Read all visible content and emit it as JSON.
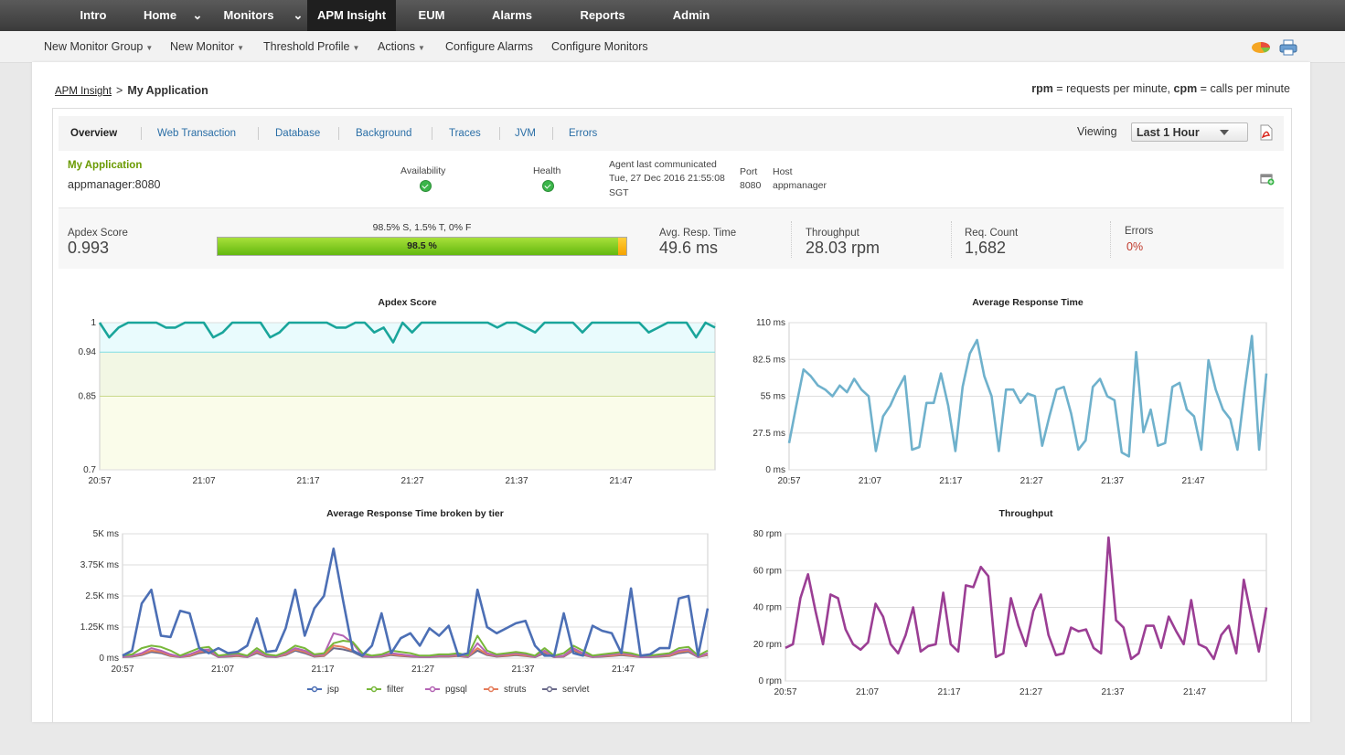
{
  "topnav": {
    "items": [
      {
        "label": "Intro"
      },
      {
        "label": "Home"
      },
      {
        "label": "Monitors"
      },
      {
        "label": "APM Insight",
        "active": true
      },
      {
        "label": "EUM"
      },
      {
        "label": "Alarms"
      },
      {
        "label": "Reports"
      },
      {
        "label": "Admin"
      }
    ]
  },
  "subnav": {
    "items": [
      {
        "label": "New Monitor Group"
      },
      {
        "label": "New Monitor"
      },
      {
        "label": "Threshold Profile"
      },
      {
        "label": "Actions"
      },
      {
        "label": "Configure Alarms"
      },
      {
        "label": "Configure Monitors"
      }
    ]
  },
  "breadcrumb": {
    "parent": "APM Insight",
    "separator": ">",
    "current": "My Application"
  },
  "legend_note": {
    "rpm": "rpm",
    "rpm_text": " = requests per minute, ",
    "cpm": "cpm",
    "cpm_text": " = calls per minute"
  },
  "tabs": [
    {
      "label": "Overview",
      "selected": true
    },
    {
      "label": "Web Transaction"
    },
    {
      "label": "Database"
    },
    {
      "label": "Background"
    },
    {
      "label": "Traces"
    },
    {
      "label": "JVM"
    },
    {
      "label": "Errors"
    }
  ],
  "viewing": {
    "label": "Viewing",
    "value": "Last 1 Hour"
  },
  "app_info": {
    "name": "My Application",
    "instance": "appmanager:8080",
    "availability_label": "Availability",
    "health_label": "Health",
    "agent_label": "Agent last communicated",
    "agent_time_line1": "Tue, 27 Dec 2016 21:55:08",
    "agent_time_line2": "SGT",
    "port_label": "Port",
    "port": "8080",
    "host_label": "Host",
    "host": "appmanager",
    "status_color": "#3bb54a"
  },
  "metrics": {
    "apdex_label": "Apdex Score",
    "apdex_value": "0.993",
    "bar_caption": "98.5% S, 1.5% T, 0% F",
    "bar_text": "98.5 %",
    "satisfied_pct": 98.5,
    "avg_resp_label": "Avg. Resp. Time",
    "avg_resp_value": "49.6 ms",
    "throughput_label": "Throughput",
    "throughput_value": "28.03 rpm",
    "req_count_label": "Req. Count",
    "req_count_value": "1,682",
    "errors_label": "Errors",
    "errors_value": "0%",
    "errors_color": "#c0392b"
  },
  "chart_data": [
    {
      "type": "line",
      "title": "Apdex Score",
      "ylim": [
        0.7,
        1
      ],
      "y_ticks": [
        {
          "value": 1,
          "label": "1",
          "color": "#333333"
        },
        {
          "value": 0.94,
          "label": "0.94",
          "color": "#1fc0c8"
        },
        {
          "value": 0.85,
          "label": "0.85",
          "color": "#7aa010"
        },
        {
          "value": 0.7,
          "label": "0.7",
          "color": "#c00000"
        }
      ],
      "x_labels": [
        "20:57",
        "21:07",
        "21:17",
        "21:27",
        "21:37",
        "21:47"
      ],
      "series": [
        {
          "color": "#1aa59b",
          "values": [
            1,
            0.97,
            0.99,
            1,
            1,
            1,
            1,
            0.99,
            0.99,
            1,
            1,
            1,
            0.97,
            0.98,
            1,
            1,
            1,
            1,
            0.97,
            0.98,
            1,
            1,
            1,
            1,
            1,
            0.99,
            0.99,
            1,
            1,
            0.98,
            0.99,
            0.96,
            1,
            0.98,
            1,
            1,
            1,
            1,
            1,
            1,
            1,
            1,
            0.99,
            1,
            1,
            0.99,
            0.98,
            1,
            1,
            1,
            1,
            0.98,
            1,
            1,
            1,
            1,
            1,
            1,
            0.98,
            0.99,
            1,
            1,
            1,
            0.97,
            1,
            0.99
          ]
        }
      ],
      "colors": {
        "bg_satisfied": "#e9fbfd",
        "bg_tolerating": "#f2f7e4",
        "bg_frustrated": "#fafcea"
      }
    },
    {
      "type": "line",
      "title": "Average Response Time",
      "ylim": [
        0,
        110
      ],
      "y_ticks": [
        {
          "value": 110,
          "label": "110 ms"
        },
        {
          "value": 82.5,
          "label": "82.5 ms"
        },
        {
          "value": 55,
          "label": "55 ms"
        },
        {
          "value": 27.5,
          "label": "27.5 ms"
        },
        {
          "value": 0,
          "label": "0 ms"
        }
      ],
      "x_labels": [
        "20:57",
        "21:07",
        "21:17",
        "21:27",
        "21:37",
        "21:47"
      ],
      "series": [
        {
          "color": "#6fb1cc",
          "values": [
            20,
            48,
            75,
            70,
            63,
            60,
            55,
            63,
            58,
            68,
            60,
            55,
            14,
            40,
            48,
            60,
            70,
            15,
            17,
            50,
            50,
            72,
            48,
            14,
            62,
            87,
            97,
            70,
            55,
            14,
            60,
            60,
            50,
            57,
            55,
            18,
            40,
            60,
            62,
            42,
            15,
            22,
            62,
            68,
            55,
            52,
            13,
            10,
            88,
            28,
            45,
            18,
            20,
            62,
            65,
            45,
            40,
            15,
            82,
            60,
            45,
            38,
            15,
            60,
            100,
            15,
            72
          ]
        }
      ]
    },
    {
      "type": "line",
      "title": "Average Response Time broken by tier",
      "ylim": [
        0,
        5000
      ],
      "y_ticks": [
        {
          "value": 5000,
          "label": "5K ms"
        },
        {
          "value": 3750,
          "label": "3.75K ms"
        },
        {
          "value": 2500,
          "label": "2.5K ms"
        },
        {
          "value": 1250,
          "label": "1.25K ms"
        },
        {
          "value": 0,
          "label": "0 ms"
        }
      ],
      "x_labels": [
        "20:57",
        "21:07",
        "21:17",
        "21:27",
        "21:37",
        "21:47"
      ],
      "series": [
        {
          "name": "jsp",
          "color": "#4c6fb5",
          "values": [
            100,
            300,
            2200,
            2750,
            900,
            850,
            1900,
            1800,
            400,
            200,
            400,
            200,
            250,
            500,
            1600,
            250,
            300,
            1200,
            2750,
            900,
            2000,
            2500,
            4400,
            2300,
            300,
            100,
            500,
            1800,
            200,
            800,
            1000,
            500,
            1200,
            900,
            1300,
            100,
            200,
            2750,
            1250,
            1000,
            1200,
            1400,
            1500,
            500,
            100,
            100,
            1800,
            200,
            100,
            1300,
            1100,
            1000,
            200,
            2800,
            100,
            150,
            400,
            400,
            2400,
            2500,
            100,
            2000
          ]
        },
        {
          "name": "filter",
          "color": "#77b739",
          "values": [
            100,
            150,
            400,
            500,
            450,
            300,
            100,
            250,
            400,
            450,
            100,
            150,
            200,
            100,
            400,
            150,
            100,
            250,
            500,
            400,
            150,
            200,
            600,
            700,
            650,
            200,
            100,
            150,
            300,
            250,
            200,
            100,
            100,
            150,
            150,
            200,
            100,
            900,
            300,
            150,
            200,
            250,
            200,
            100,
            400,
            100,
            200,
            500,
            300,
            100,
            150,
            200,
            250,
            200,
            100,
            100,
            150,
            200,
            400,
            450,
            100,
            300
          ]
        },
        {
          "name": "pgsql",
          "color": "#b464b4",
          "values": [
            50,
            100,
            200,
            400,
            300,
            150,
            50,
            150,
            300,
            350,
            50,
            100,
            150,
            50,
            300,
            100,
            50,
            200,
            400,
            300,
            100,
            150,
            1000,
            900,
            600,
            100,
            50,
            100,
            200,
            150,
            100,
            50,
            50,
            100,
            100,
            150,
            50,
            600,
            200,
            100,
            150,
            200,
            150,
            50,
            300,
            50,
            100,
            400,
            200,
            50,
            100,
            150,
            200,
            150,
            50,
            50,
            100,
            150,
            300,
            350,
            50,
            200
          ]
        },
        {
          "name": "struts",
          "color": "#e57d5c",
          "values": [
            50,
            80,
            150,
            300,
            250,
            100,
            50,
            100,
            250,
            300,
            50,
            80,
            100,
            50,
            250,
            80,
            50,
            150,
            350,
            250,
            80,
            100,
            500,
            450,
            300,
            80,
            50,
            80,
            150,
            100,
            80,
            50,
            50,
            80,
            80,
            100,
            50,
            400,
            150,
            80,
            100,
            150,
            100,
            50,
            250,
            50,
            80,
            350,
            150,
            50,
            80,
            100,
            150,
            100,
            50,
            50,
            80,
            100,
            250,
            300,
            50,
            150
          ]
        },
        {
          "name": "servlet",
          "color": "#6a6a8a",
          "values": [
            40,
            60,
            120,
            250,
            200,
            80,
            40,
            80,
            200,
            250,
            40,
            60,
            80,
            40,
            200,
            60,
            40,
            120,
            300,
            200,
            60,
            80,
            400,
            350,
            250,
            60,
            40,
            60,
            120,
            80,
            60,
            40,
            40,
            60,
            60,
            80,
            40,
            300,
            120,
            60,
            80,
            120,
            80,
            40,
            200,
            40,
            60,
            300,
            120,
            40,
            60,
            80,
            120,
            80,
            40,
            40,
            60,
            80,
            200,
            250,
            40,
            120
          ]
        }
      ]
    },
    {
      "type": "line",
      "title": "Throughput",
      "ylim": [
        0,
        80
      ],
      "y_ticks": [
        {
          "value": 80,
          "label": "80 rpm"
        },
        {
          "value": 60,
          "label": "60 rpm"
        },
        {
          "value": 40,
          "label": "40 rpm"
        },
        {
          "value": 20,
          "label": "20 rpm"
        },
        {
          "value": 0,
          "label": "0 rpm"
        }
      ],
      "x_labels": [
        "20:57",
        "21:07",
        "21:17",
        "21:27",
        "21:37",
        "21:47"
      ],
      "series": [
        {
          "color": "#9b3e94",
          "values": [
            18,
            20,
            45,
            58,
            38,
            20,
            47,
            45,
            28,
            20,
            17,
            21,
            42,
            35,
            20,
            15,
            25,
            40,
            16,
            19,
            20,
            48,
            20,
            16,
            52,
            51,
            62,
            57,
            13,
            15,
            45,
            30,
            19,
            38,
            47,
            25,
            14,
            15,
            29,
            27,
            28,
            18,
            15,
            78,
            33,
            29,
            12,
            15,
            30,
            30,
            18,
            35,
            27,
            20,
            44,
            20,
            18,
            12,
            25,
            30,
            15,
            55,
            35,
            16,
            40
          ]
        }
      ]
    }
  ]
}
